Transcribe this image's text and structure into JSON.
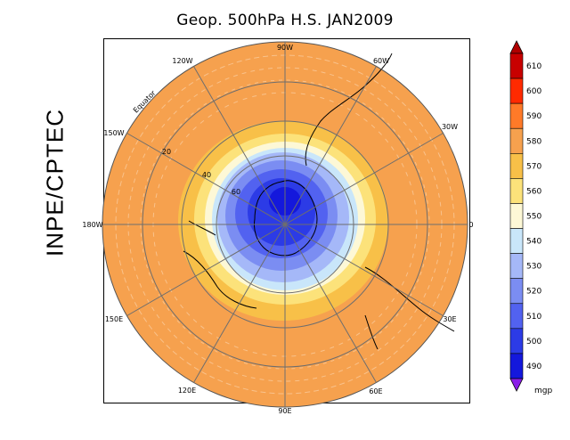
{
  "title": "Geop. 500hPa H.S. JAN2009",
  "side_label": "INPE/CPTEC",
  "longitude_labels": {
    "deg_90w": "90W",
    "deg_60w": "60W",
    "deg_30w": "30W",
    "deg_0": "0",
    "deg_30e": "30E",
    "deg_60e": "60E",
    "deg_90e": "90E",
    "deg_120e": "120E",
    "deg_150e": "150E",
    "deg_180w": "180W",
    "deg_150w": "150W",
    "deg_120w": "120W"
  },
  "latitude_labels": {
    "equator": "Equator",
    "lat20": "20",
    "lat40": "40",
    "lat60": "60"
  },
  "colorbar": {
    "unit": "mgp",
    "levels": [
      {
        "value": "610",
        "color": "#c80000"
      },
      {
        "value": "600",
        "color": "#ff2a00"
      },
      {
        "value": "590",
        "color": "#ff7a28"
      },
      {
        "value": "580",
        "color": "#f6a14e"
      },
      {
        "value": "570",
        "color": "#f8c048"
      },
      {
        "value": "560",
        "color": "#fce27a"
      },
      {
        "value": "550",
        "color": "#fdf8d6"
      },
      {
        "value": "540",
        "color": "#c9e6fa"
      },
      {
        "value": "530",
        "color": "#a5b8f8"
      },
      {
        "value": "520",
        "color": "#7b8df2"
      },
      {
        "value": "510",
        "color": "#5262f0"
      },
      {
        "value": "500",
        "color": "#2c3be6"
      },
      {
        "value": "490",
        "color": "#1418dc"
      }
    ],
    "top_arrow_color": "#b00000",
    "bottom_arrow_color": "#8a1ee8"
  }
}
